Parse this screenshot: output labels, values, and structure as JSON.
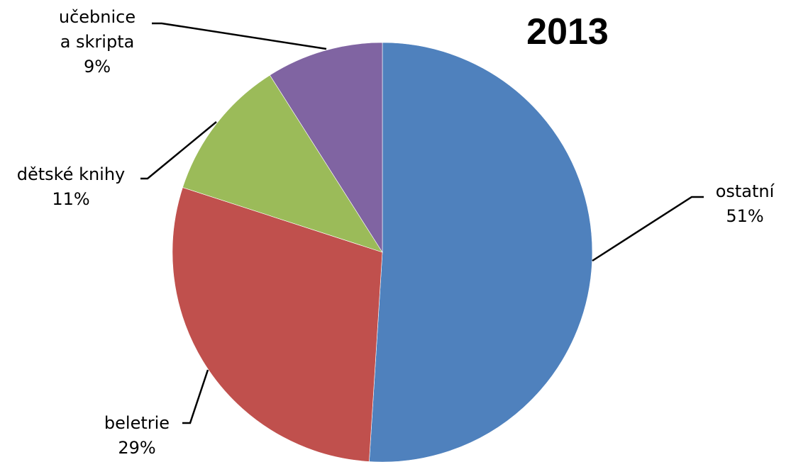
{
  "chart_data": {
    "type": "pie",
    "title": "2013",
    "start_angle_deg": 0,
    "direction": "clockwise",
    "slices": [
      {
        "name": "ostatní",
        "value": 51,
        "value_label": "51%",
        "color": "#4F81BD"
      },
      {
        "name": "beletrie",
        "value": 29,
        "value_label": "29%",
        "color": "#C0504D"
      },
      {
        "name": "dětské knihy",
        "value": 11,
        "value_label": "11%",
        "color": "#9BBB59"
      },
      {
        "name": "učebnice a skripta",
        "name_lines": [
          "učebnice",
          "a skripta"
        ],
        "value": 9,
        "value_label": "9%",
        "color": "#8064A2"
      }
    ],
    "legend": "none",
    "data_labels": "outside with leader lines"
  }
}
